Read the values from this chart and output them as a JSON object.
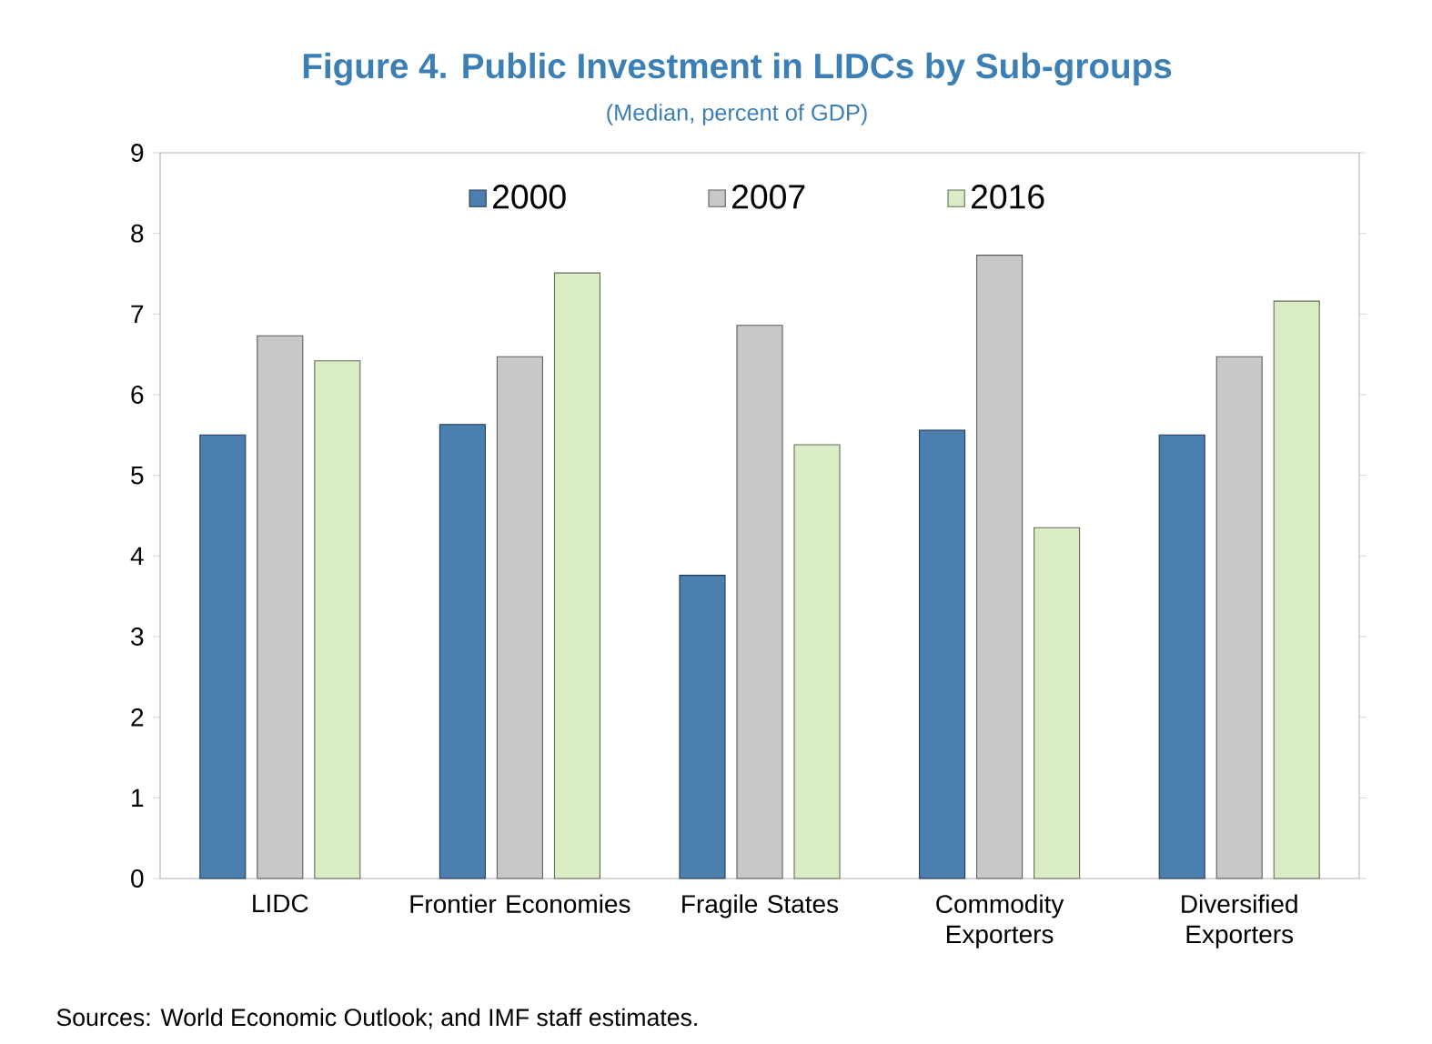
{
  "chart_data": {
    "type": "bar",
    "title": "Figure 4. Public Investment in LIDCs by Sub-groups",
    "subtitle": "(Median, percent of GDP)",
    "categories": [
      "LIDC",
      "Frontier Economies",
      "Fragile States",
      "Commodity Exporters",
      "Diversified Exporters"
    ],
    "series": [
      {
        "name": "2000",
        "color": "#4a7fb0",
        "values": [
          5.5,
          5.63,
          3.76,
          5.56,
          5.5
        ]
      },
      {
        "name": "2007",
        "color": "#c8c8c8",
        "values": [
          6.73,
          6.47,
          6.86,
          7.73,
          6.47
        ]
      },
      {
        "name": "2016",
        "color": "#d9ecc4",
        "values": [
          6.42,
          7.51,
          5.38,
          4.35,
          7.16
        ]
      }
    ],
    "ylim": [
      0,
      9
    ],
    "yticks": [
      0,
      1,
      2,
      3,
      4,
      5,
      6,
      7,
      8,
      9
    ],
    "grid": false,
    "legend": "top",
    "annotations": [
      "Sources: World Economic Outlook; and IMF staff estimates."
    ]
  }
}
